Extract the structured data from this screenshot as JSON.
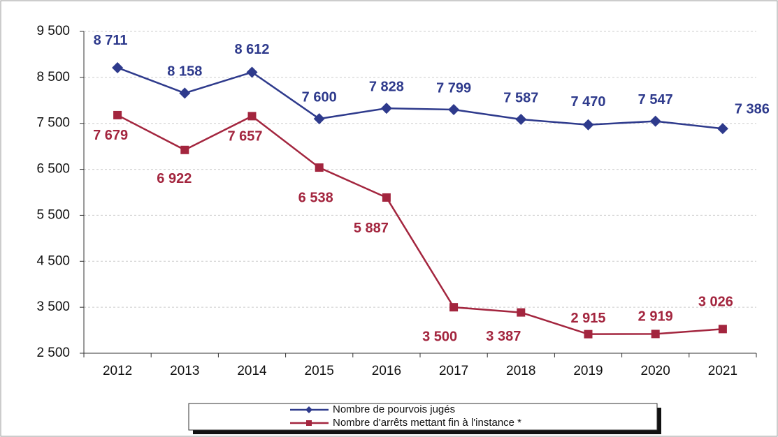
{
  "chart_data": {
    "type": "line",
    "categories": [
      "2012",
      "2013",
      "2014",
      "2015",
      "2016",
      "2017",
      "2018",
      "2019",
      "2020",
      "2021"
    ],
    "series": [
      {
        "name": "Nombre de pourvois jugés",
        "color": "#2e3a8c",
        "values": [
          8711,
          8158,
          8612,
          7600,
          7828,
          7799,
          7587,
          7470,
          7547,
          7386
        ],
        "value_labels": [
          "8 711",
          "8 158",
          "8 612",
          "7 600",
          "7 828",
          "7 799",
          "7 587",
          "7 470",
          "7 547",
          "7 386"
        ]
      },
      {
        "name": "Nombre d'arrêts mettant fin à l'instance *",
        "color": "#a3253e",
        "values": [
          7679,
          6922,
          7657,
          6538,
          5887,
          3500,
          3387,
          2915,
          2919,
          3026
        ],
        "value_labels": [
          "7 679",
          "6 922",
          "7 657",
          "6 538",
          "5 887",
          "3 500",
          "3 387",
          "2 915",
          "2 919",
          "3 026"
        ]
      }
    ],
    "ylim": [
      2500,
      9500
    ],
    "yticks": [
      {
        "value": 2500,
        "label": "2 500"
      },
      {
        "value": 3500,
        "label": "3 500"
      },
      {
        "value": 4500,
        "label": "4 500"
      },
      {
        "value": 5500,
        "label": "5 500"
      },
      {
        "value": 6500,
        "label": "6 500"
      },
      {
        "value": 7500,
        "label": "7 500"
      },
      {
        "value": 8500,
        "label": "8 500"
      },
      {
        "value": 9500,
        "label": "9 500"
      }
    ],
    "grid": true
  }
}
